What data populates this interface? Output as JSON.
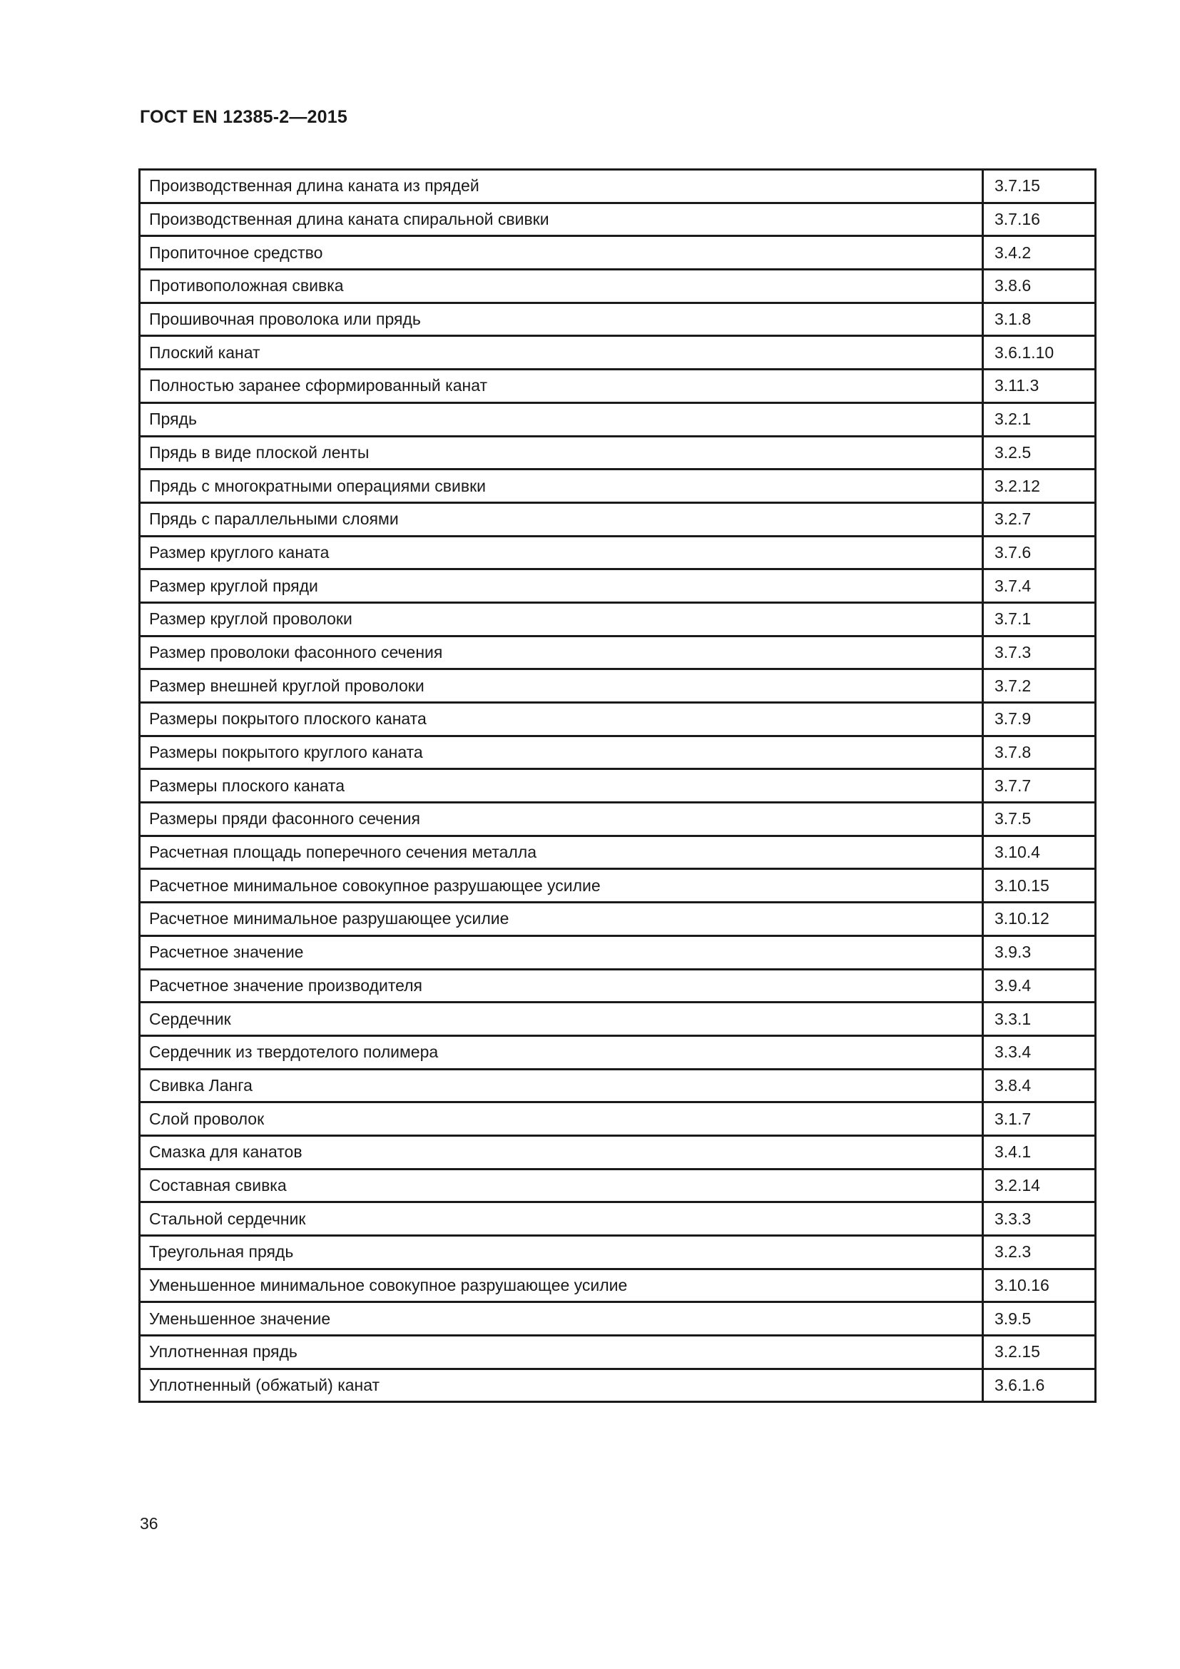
{
  "header": {
    "title": "ГОСТ EN 12385-2—2015"
  },
  "rows": [
    {
      "term": "Производственная длина каната из прядей",
      "ref": "3.7.15"
    },
    {
      "term": "Производственная длина каната спиральной свивки",
      "ref": "3.7.16"
    },
    {
      "term": "Пропиточное средство",
      "ref": "3.4.2"
    },
    {
      "term": "Противоположная свивка",
      "ref": "3.8.6"
    },
    {
      "term": "Прошивочная проволока или прядь",
      "ref": "3.1.8"
    },
    {
      "term": "Плоский канат",
      "ref": "3.6.1.10"
    },
    {
      "term": "Полностью заранее сформированный канат",
      "ref": "3.11.3"
    },
    {
      "term": "Прядь",
      "ref": "3.2.1"
    },
    {
      "term": "Прядь в виде плоской ленты",
      "ref": "3.2.5"
    },
    {
      "term": "Прядь с многократными операциями свивки",
      "ref": "3.2.12"
    },
    {
      "term": "Прядь с параллельными слоями",
      "ref": "3.2.7"
    },
    {
      "term": "Размер круглого каната",
      "ref": "3.7.6"
    },
    {
      "term": "Размер круглой пряди",
      "ref": "3.7.4"
    },
    {
      "term": "Размер круглой проволоки",
      "ref": "3.7.1"
    },
    {
      "term": "Размер проволоки фасонного сечения",
      "ref": "3.7.3"
    },
    {
      "term": "Размер внешней круглой проволоки",
      "ref": "3.7.2"
    },
    {
      "term": "Размеры покрытого плоского каната",
      "ref": "3.7.9"
    },
    {
      "term": "Размеры покрытого круглого каната",
      "ref": "3.7.8"
    },
    {
      "term": "Размеры плоского каната",
      "ref": "3.7.7"
    },
    {
      "term": "Размеры пряди фасонного сечения",
      "ref": "3.7.5"
    },
    {
      "term": "Расчетная площадь поперечного сечения металла",
      "ref": "3.10.4"
    },
    {
      "term": "Расчетное минимальное совокупное разрушающее усилие",
      "ref": "3.10.15"
    },
    {
      "term": "Расчетное минимальное разрушающее усилие",
      "ref": "3.10.12"
    },
    {
      "term": "Расчетное значение",
      "ref": "3.9.3"
    },
    {
      "term": "Расчетное значение производителя",
      "ref": "3.9.4"
    },
    {
      "term": "Сердечник",
      "ref": "3.3.1"
    },
    {
      "term": "Сердечник из твердотелого полимера",
      "ref": "3.3.4"
    },
    {
      "term": "Свивка Ланга",
      "ref": "3.8.4"
    },
    {
      "term": "Слой проволок",
      "ref": "3.1.7"
    },
    {
      "term": "Смазка для канатов",
      "ref": "3.4.1"
    },
    {
      "term": "Составная свивка",
      "ref": "3.2.14"
    },
    {
      "term": "Стальной сердечник",
      "ref": "3.3.3"
    },
    {
      "term": "Треугольная прядь",
      "ref": "3.2.3"
    },
    {
      "term": "Уменьшенное минимальное совокупное разрушающее усилие",
      "ref": "3.10.16"
    },
    {
      "term": "Уменьшенное значение",
      "ref": "3.9.5"
    },
    {
      "term": "Уплотненная прядь",
      "ref": "3.2.15"
    },
    {
      "term": "Уплотненный (обжатый) канат",
      "ref": "3.6.1.6"
    }
  ],
  "footer": {
    "page_number": "36"
  }
}
